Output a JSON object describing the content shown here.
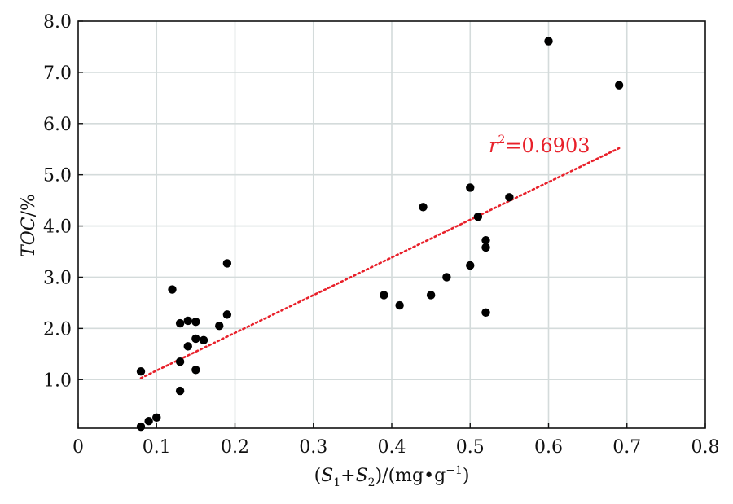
{
  "chart_data": {
    "type": "scatter",
    "xlabel": "(S1+S2)/(mg•g−1)",
    "ylabel": "TOC/%",
    "xlim": [
      0,
      0.8
    ],
    "ylim": [
      0.05,
      8.0
    ],
    "x_ticks": [
      0,
      0.1,
      0.2,
      0.3,
      0.4,
      0.5,
      0.6,
      0.7,
      0.8
    ],
    "x_tick_labels": [
      "0",
      "0.1",
      "0.2",
      "0.3",
      "0.4",
      "0.5",
      "0.6",
      "0.7",
      "0.8"
    ],
    "y_ticks": [
      1,
      2,
      3,
      4,
      5,
      6,
      7,
      8
    ],
    "y_tick_labels": [
      "1.0",
      "2.0",
      "3.0",
      "4.0",
      "5.0",
      "6.0",
      "7.0",
      "8.0"
    ],
    "grid": true,
    "series": [
      {
        "points": [
          [
            0.08,
            1.16
          ],
          [
            0.08,
            0.08
          ],
          [
            0.09,
            0.19
          ],
          [
            0.1,
            0.26
          ],
          [
            0.12,
            2.76
          ],
          [
            0.13,
            2.1
          ],
          [
            0.13,
            1.35
          ],
          [
            0.13,
            0.78
          ],
          [
            0.14,
            2.15
          ],
          [
            0.14,
            1.65
          ],
          [
            0.15,
            2.13
          ],
          [
            0.15,
            1.8
          ],
          [
            0.15,
            1.19
          ],
          [
            0.16,
            1.77
          ],
          [
            0.18,
            2.05
          ],
          [
            0.19,
            3.27
          ],
          [
            0.19,
            2.27
          ],
          [
            0.39,
            2.65
          ],
          [
            0.41,
            2.45
          ],
          [
            0.44,
            4.37
          ],
          [
            0.45,
            2.65
          ],
          [
            0.47,
            3.0
          ],
          [
            0.5,
            4.75
          ],
          [
            0.5,
            3.23
          ],
          [
            0.51,
            4.18
          ],
          [
            0.52,
            3.72
          ],
          [
            0.52,
            3.58
          ],
          [
            0.52,
            2.31
          ],
          [
            0.55,
            4.56
          ],
          [
            0.6,
            7.61
          ],
          [
            0.69,
            6.75
          ]
        ],
        "color": "#000000"
      }
    ],
    "trendline": {
      "from": [
        0.08,
        1.03
      ],
      "to": [
        0.69,
        5.52
      ],
      "color": "#e8202a",
      "style": "dotted"
    },
    "annotation": {
      "r_symbol": "r",
      "sup": "2",
      "value_text": "=0.6903",
      "color": "#e8202a"
    }
  }
}
